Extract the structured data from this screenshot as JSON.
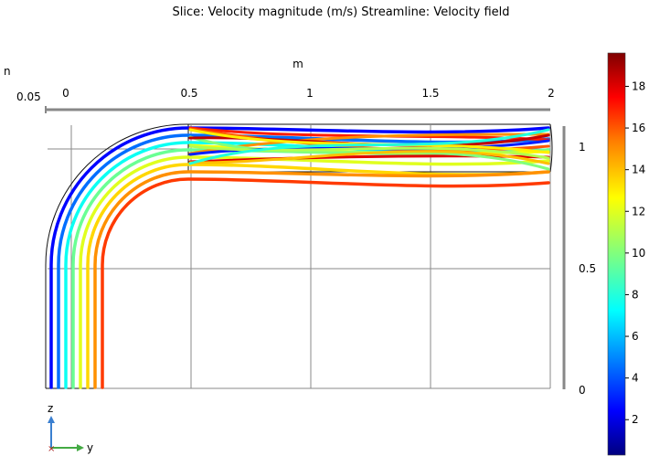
{
  "title": "Slice: Velocity magnitude (m/s)  Streamline: Velocity field",
  "chart_data": {
    "type": "heatmap",
    "title": "Slice: Velocity magnitude (m/s)  Streamline: Velocity field",
    "axis_unit_label": "m",
    "axis_unit_label_cut": "n",
    "x_axis": {
      "ticks": [
        "0",
        "0.5",
        "1",
        "1.5",
        "2"
      ],
      "range": [
        0,
        2
      ]
    },
    "vertical_axis": {
      "ticks": [
        "0",
        "0.5",
        "1"
      ],
      "range": [
        0,
        1.2
      ]
    },
    "depth_tick": "0.05",
    "orientation_axes": [
      "z",
      "y"
    ],
    "colorbar": {
      "ticks": [
        "2",
        "4",
        "6",
        "8",
        "10",
        "12",
        "14",
        "16",
        "18"
      ],
      "range": [
        0.3,
        19.6
      ],
      "colormap": [
        "#00007f",
        "#0000ff",
        "#00ffff",
        "#7fff7f",
        "#ffff00",
        "#ff7f00",
        "#ff0000",
        "#7f0000"
      ]
    },
    "streamlines_vertical": [
      {
        "speed": 2.5
      },
      {
        "speed": 4.5
      },
      {
        "speed": 7.5
      },
      {
        "speed": 9.5
      },
      {
        "speed": 12
      },
      {
        "speed": 13.5
      },
      {
        "speed": 15
      },
      {
        "speed": 16.5
      }
    ],
    "streamlines_horizontal": [
      {
        "speed": 17
      },
      {
        "speed": 18
      },
      {
        "speed": 15
      },
      {
        "speed": 12.5
      },
      {
        "speed": 10
      },
      {
        "speed": 16
      },
      {
        "speed": 14
      },
      {
        "speed": 3
      },
      {
        "speed": 11
      },
      {
        "speed": 18.5
      },
      {
        "speed": 13
      },
      {
        "speed": 8
      }
    ]
  }
}
